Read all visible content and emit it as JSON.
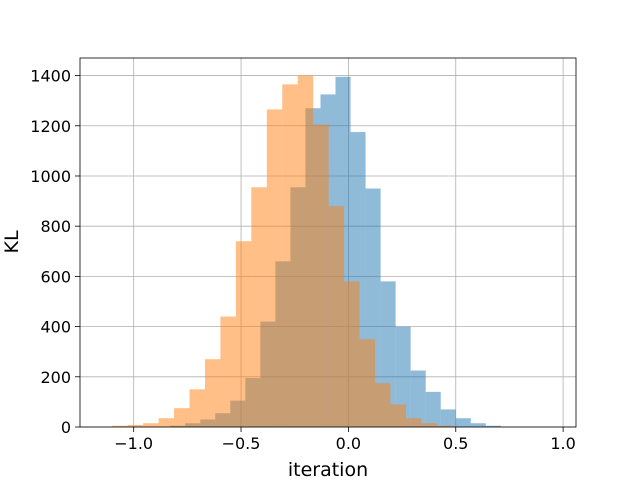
{
  "chart_data": {
    "type": "bar",
    "subtype": "histogram",
    "xlabel": "iteration",
    "ylabel": "KL",
    "xlim": [
      -1.25,
      1.06
    ],
    "ylim": [
      0,
      1470
    ],
    "xticks": [
      -1.0,
      -0.5,
      0.0,
      0.5,
      1.0
    ],
    "xtick_labels": [
      "−1.0",
      "−0.5",
      "0.0",
      "0.5",
      "1.0"
    ],
    "yticks": [
      0,
      200,
      400,
      600,
      800,
      1000,
      1200,
      1400
    ],
    "ytick_labels": [
      "0",
      "200",
      "400",
      "600",
      "800",
      "1000",
      "1200",
      "1400"
    ],
    "grid": true,
    "series": [
      {
        "color": "#1f77b4",
        "alpha": 0.5,
        "bin_start": -0.83,
        "bin_width": 0.07,
        "values": [
          5,
          15,
          30,
          55,
          105,
          195,
          420,
          660,
          955,
          1270,
          1325,
          1395,
          1175,
          950,
          580,
          400,
          225,
          140,
          70,
          35,
          15,
          5
        ]
      },
      {
        "color": "#ff7f0e",
        "alpha": 0.5,
        "bin_start": -1.1,
        "bin_width": 0.072,
        "values": [
          5,
          8,
          15,
          35,
          75,
          150,
          270,
          440,
          740,
          955,
          1265,
          1365,
          1400,
          1205,
          880,
          580,
          350,
          175,
          90,
          35,
          15,
          5
        ]
      }
    ]
  }
}
